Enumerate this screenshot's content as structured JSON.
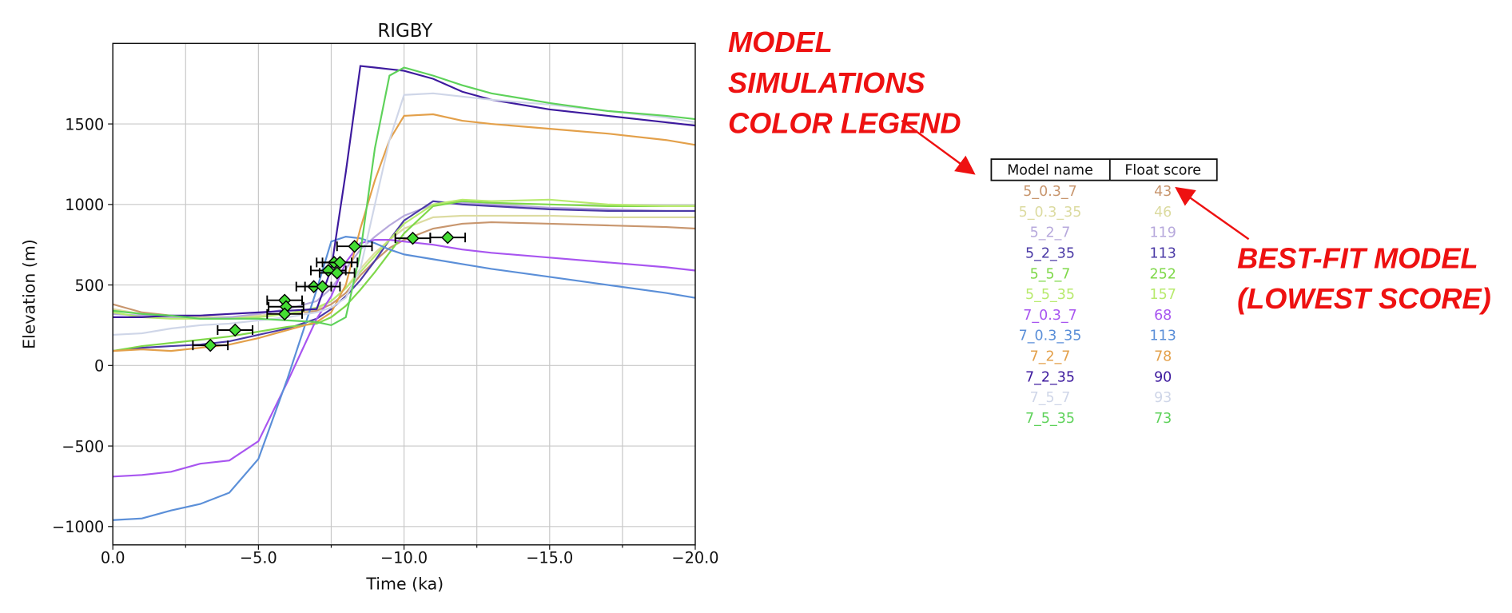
{
  "chart_data": {
    "type": "line",
    "title": "RIGBY",
    "xlabel": "Time (ka)",
    "ylabel": "Elevation (m)",
    "xlim": [
      0,
      -20
    ],
    "ylim": [
      -1114,
      2000
    ],
    "xticks": [
      {
        "value": 0,
        "label": "0.0"
      },
      {
        "value": -5,
        "label": "−5.0"
      },
      {
        "value": -10,
        "label": "−10.0"
      },
      {
        "value": -15,
        "label": "−15.0"
      },
      {
        "value": -20,
        "label": "−20.0"
      }
    ],
    "xminor": [
      -2.5,
      -7.5,
      -12.5,
      -17.5
    ],
    "yticks": [
      {
        "value": -1000,
        "label": "−1000"
      },
      {
        "value": -500,
        "label": "−500"
      },
      0,
      500,
      1000,
      1500
    ],
    "grid": true,
    "x": [
      0,
      -1,
      -2,
      -3,
      -4,
      -5,
      -6,
      -7,
      -7.5,
      -8,
      -8.5,
      -9,
      -9.5,
      -10,
      -11,
      -12,
      -13,
      -15,
      -17,
      -19,
      -20
    ],
    "series": [
      {
        "name": "5_0.3_7",
        "color": "#c8966e",
        "score": 43,
        "values": [
          380,
          330,
          310,
          300,
          300,
          310,
          320,
          340,
          380,
          450,
          560,
          650,
          730,
          780,
          850,
          880,
          890,
          880,
          870,
          860,
          850
        ]
      },
      {
        "name": "5_0.3_35",
        "color": "#dcdba0",
        "score": 46,
        "values": [
          350,
          320,
          300,
          300,
          300,
          310,
          320,
          350,
          400,
          480,
          600,
          700,
          780,
          850,
          920,
          930,
          930,
          930,
          920,
          920,
          920
        ]
      },
      {
        "name": "5_2_7",
        "color": "#b7a9dc",
        "score": 119,
        "values": [
          320,
          310,
          300,
          290,
          300,
          320,
          350,
          400,
          480,
          600,
          720,
          800,
          870,
          930,
          1000,
          1010,
          1000,
          980,
          970,
          960,
          960
        ]
      },
      {
        "name": "5_2_35",
        "color": "#4b3aa6",
        "score": 113,
        "values": [
          90,
          110,
          120,
          130,
          150,
          190,
          230,
          290,
          350,
          430,
          530,
          650,
          780,
          900,
          1020,
          1000,
          990,
          970,
          960,
          960,
          960
        ]
      },
      {
        "name": "5_5_7",
        "color": "#7fd84a",
        "score": 252,
        "values": [
          90,
          120,
          140,
          160,
          180,
          210,
          240,
          260,
          300,
          370,
          470,
          580,
          700,
          820,
          990,
          1020,
          1010,
          1000,
          990,
          990,
          990
        ]
      },
      {
        "name": "5_5_35",
        "color": "#b8ea6e",
        "score": 157,
        "values": [
          330,
          300,
          290,
          290,
          290,
          300,
          320,
          360,
          400,
          480,
          580,
          680,
          780,
          880,
          1000,
          1030,
          1020,
          1030,
          1000,
          990,
          990
        ]
      },
      {
        "name": "7_0.3_7",
        "color": "#a855f0",
        "score": 68,
        "values": [
          -690,
          -680,
          -660,
          -610,
          -590,
          -470,
          -100,
          290,
          430,
          640,
          760,
          780,
          780,
          770,
          750,
          720,
          700,
          670,
          640,
          610,
          590
        ]
      },
      {
        "name": "7_0.3_35",
        "color": "#5b8fd8",
        "score": 113,
        "values": [
          -960,
          -950,
          -900,
          -860,
          -790,
          -580,
          -80,
          470,
          770,
          800,
          790,
          760,
          720,
          690,
          660,
          630,
          600,
          550,
          500,
          450,
          420
        ]
      },
      {
        "name": "7_2_7",
        "color": "#e3a04a",
        "score": 78,
        "values": [
          90,
          100,
          90,
          110,
          130,
          170,
          220,
          270,
          330,
          500,
          850,
          1150,
          1400,
          1550,
          1560,
          1520,
          1500,
          1470,
          1440,
          1400,
          1370
        ]
      },
      {
        "name": "7_2_35",
        "color": "#3d1a9e",
        "score": 90,
        "values": [
          300,
          300,
          310,
          310,
          320,
          330,
          340,
          350,
          600,
          1200,
          1860,
          1850,
          1840,
          1830,
          1780,
          1700,
          1650,
          1590,
          1550,
          1510,
          1490
        ]
      },
      {
        "name": "7_5_7",
        "color": "#cfd6e8",
        "score": 93,
        "values": [
          190,
          200,
          230,
          250,
          260,
          280,
          300,
          330,
          360,
          420,
          600,
          1000,
          1400,
          1680,
          1690,
          1670,
          1650,
          1620,
          1580,
          1540,
          1510
        ]
      },
      {
        "name": "7_5_35",
        "color": "#5ed25a",
        "score": 73,
        "values": [
          340,
          320,
          310,
          290,
          290,
          290,
          280,
          270,
          250,
          300,
          700,
          1350,
          1800,
          1850,
          1800,
          1740,
          1690,
          1630,
          1580,
          1550,
          1530
        ]
      }
    ],
    "points": {
      "type": "errorbar",
      "color": "#44dd33",
      "x": [
        -3.35,
        -4.2,
        -5.9,
        -5.95,
        -5.9,
        -6.9,
        -7.2,
        -7.4,
        -7.6,
        -7.8,
        -7.7,
        -8.3,
        -10.3,
        -11.5
      ],
      "y": [
        125,
        220,
        405,
        365,
        320,
        490,
        490,
        590,
        640,
        640,
        575,
        740,
        790,
        795
      ],
      "xerr": [
        0.6,
        0.6,
        0.6,
        0.6,
        0.6,
        0.6,
        0.6,
        0.6,
        0.6,
        0.6,
        0.6,
        0.6,
        0.6,
        0.6
      ]
    }
  },
  "legend_table": {
    "headers": [
      "Model name",
      "Float score"
    ]
  },
  "annotations": {
    "legend_note": [
      "MODEL",
      "SIMULATIONS",
      "COLOR LEGEND"
    ],
    "best_fit_note": [
      "BEST-FIT MODEL",
      "(LOWEST SCORE)"
    ]
  }
}
